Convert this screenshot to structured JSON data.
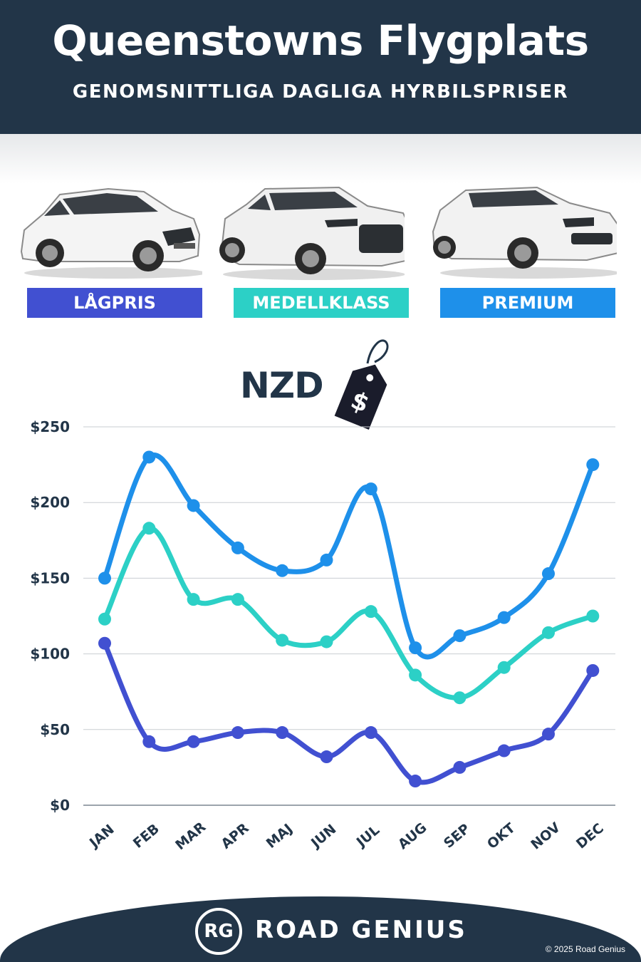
{
  "header": {
    "title": "Queenstowns Flygplats",
    "subtitle": "GENOMSNITTLIGA DAGLIGA HYRBILSPRISER"
  },
  "categories": [
    {
      "label": "LÅGPRIS",
      "color": "#4150d1"
    },
    {
      "label": "MEDELLKLASS",
      "color": "#2cd0c6"
    },
    {
      "label": "PREMIUM",
      "color": "#1e90ea"
    }
  ],
  "currency_label": "NZD",
  "tag_symbol": "$",
  "chart_data": {
    "type": "line",
    "categories": [
      "JAN",
      "FEB",
      "MAR",
      "APR",
      "MAJ",
      "JUN",
      "JUL",
      "AUG",
      "SEP",
      "OKT",
      "NOV",
      "DEC"
    ],
    "series": [
      {
        "name": "PREMIUM",
        "color": "#1e90ea",
        "values": [
          150,
          230,
          198,
          170,
          155,
          162,
          209,
          104,
          112,
          124,
          153,
          225
        ]
      },
      {
        "name": "MEDELLKLASS",
        "color": "#2cd0c6",
        "values": [
          123,
          183,
          136,
          136,
          109,
          108,
          128,
          86,
          71,
          91,
          114,
          125
        ]
      },
      {
        "name": "LÅGPRIS",
        "color": "#4150d1",
        "values": [
          107,
          42,
          42,
          48,
          48,
          32,
          48,
          16,
          25,
          36,
          47,
          89
        ]
      }
    ],
    "ylim": [
      0,
      250
    ],
    "yticks": [
      "$0",
      "$50",
      "$100",
      "$150",
      "$200",
      "$250"
    ],
    "grid": true
  },
  "footer": {
    "logo_initials": "RG",
    "brand": "ROAD GENIUS",
    "copyright": "© 2025 Road Genius"
  }
}
